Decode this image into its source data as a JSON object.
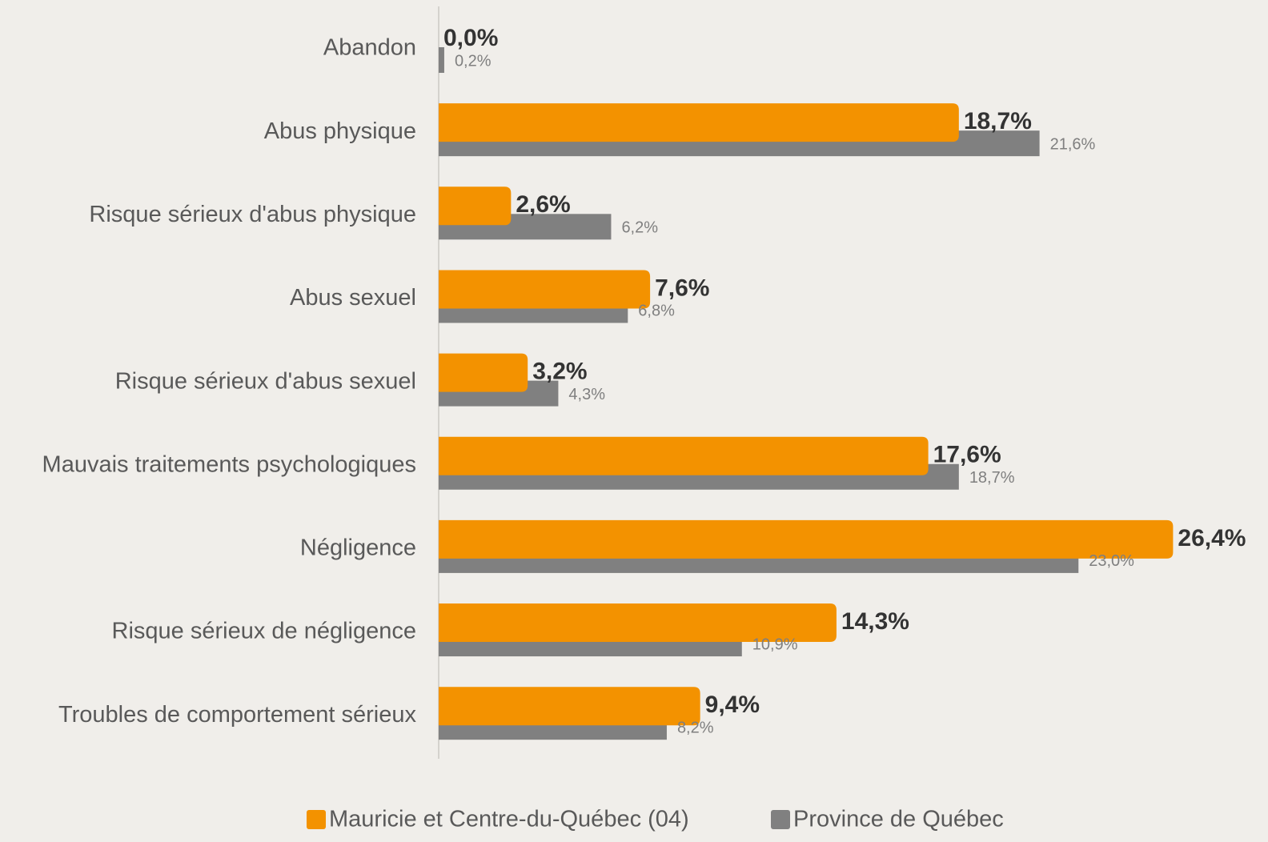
{
  "chart_data": {
    "type": "bar",
    "orientation": "horizontal",
    "categories": [
      "Abandon",
      "Abus physique",
      "Risque sérieux d'abus physique",
      "Abus sexuel",
      "Risque sérieux d'abus sexuel",
      "Mauvais traitements psychologiques",
      "Négligence",
      "Risque sérieux de négligence",
      "Troubles de comportement sérieux"
    ],
    "series": [
      {
        "name": "Mauricie et Centre-du-Québec (04)",
        "color": "#f39200",
        "values": [
          0.0,
          18.7,
          2.6,
          7.6,
          3.2,
          17.6,
          26.4,
          14.3,
          9.4
        ],
        "value_labels": [
          "0,0%",
          "18,7%",
          "2,6%",
          "7,6%",
          "3,2%",
          "17,6%",
          "26,4%",
          "14,3%",
          "9,4%"
        ]
      },
      {
        "name": "Province de Québec",
        "color": "#808080",
        "values": [
          0.2,
          21.6,
          6.2,
          6.8,
          4.3,
          18.7,
          23.0,
          10.9,
          8.2
        ],
        "value_labels": [
          "0,2%",
          "21,6%",
          "6,2%",
          "6,8%",
          "4,3%",
          "18,7%",
          "23,0%",
          "10,9%",
          "8,2%"
        ]
      }
    ],
    "legend": "bottom"
  }
}
